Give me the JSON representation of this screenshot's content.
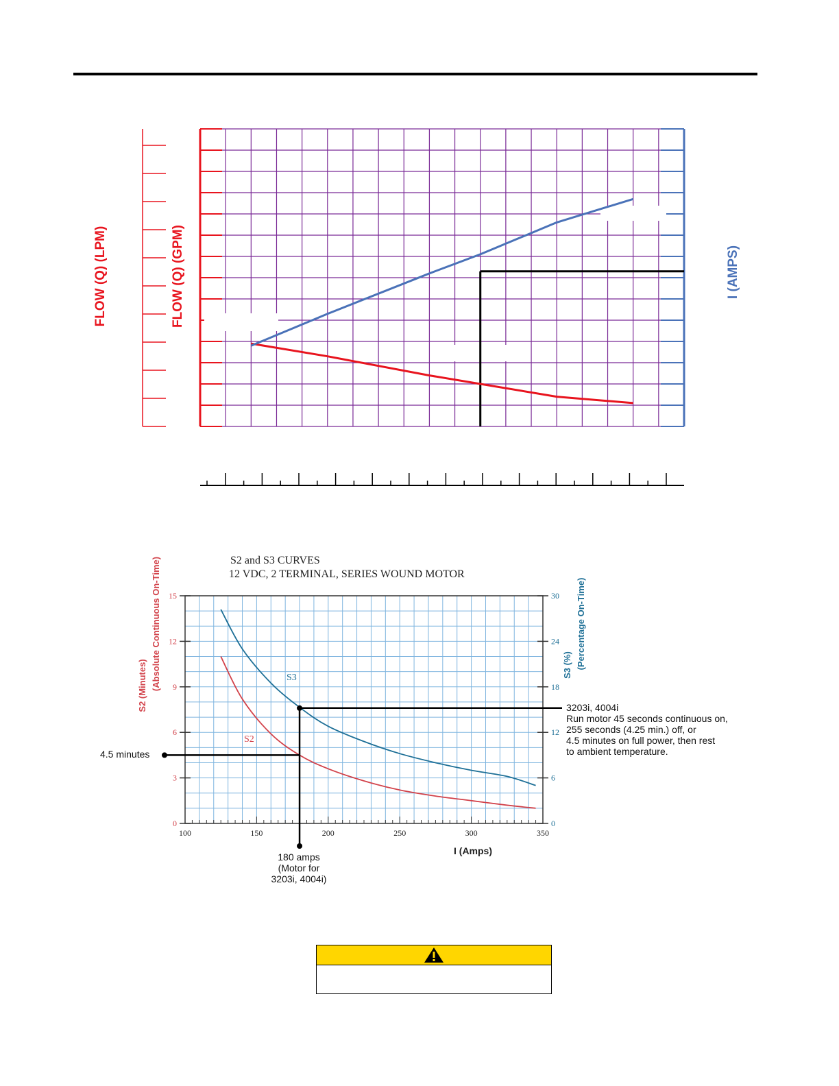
{
  "chart_data": [
    {
      "type": "line",
      "title": "",
      "ylabel_left_outer": "FLOW (Q) (LPM)",
      "ylabel_left_inner": "FLOW (Q) (GPM)",
      "ylabel_right": "I (AMPS)",
      "xlabel": "",
      "grid": true,
      "colors": {
        "flow": "#e8141e",
        "current": "#4a72b8",
        "grid": "#7a2a96",
        "left_axis": "#e8141e",
        "right_axis": "#4a72b8"
      },
      "series": [
        {
          "x": [
            2,
            5,
            9,
            11,
            14,
            17
          ],
          "values": [
            3.9,
            3.3,
            2.4,
            2.0,
            1.4,
            1.1
          ]
        },
        {
          "x": [
            2,
            5,
            9,
            11,
            14,
            17
          ],
          "values": [
            3.8,
            5.3,
            7.2,
            8.1,
            9.6,
            10.7
          ]
        }
      ],
      "reference": {
        "x": 11,
        "y": 7.3
      }
    },
    {
      "type": "line",
      "title": "S2 and S3 CURVES",
      "subtitle": "12 VDC, 2 TERMINAL, SERIES WOUND MOTOR",
      "xlabel": "I (Amps)",
      "ylabel_left": "S2 (Minutes)",
      "ylabel_left_sub": "(Absolute Continuous On-Time)",
      "ylabel_right": "S3 (%)",
      "ylabel_right_sub": "(Percentage On-Time)",
      "xlim": [
        100,
        350
      ],
      "ylim_left": [
        0,
        15
      ],
      "ylim_right": [
        0,
        30
      ],
      "x_ticks": [
        "100",
        "150",
        "200",
        "250",
        "300",
        "350"
      ],
      "y_ticks_left": [
        "0",
        "3",
        "6",
        "9",
        "12",
        "15"
      ],
      "y_ticks_right": [
        "0",
        "6",
        "12",
        "18",
        "24",
        "30"
      ],
      "grid": true,
      "colors": {
        "s2": "#d2424a",
        "s3": "#1d6f96",
        "grid": "#7fb5df",
        "left_ticks": "#d2424a",
        "right_ticks": "#1d6f96"
      },
      "series": [
        {
          "name": "S2",
          "axis": "left",
          "x": [
            125,
            140,
            160,
            180,
            200,
            225,
            250,
            275,
            300,
            325,
            345
          ],
          "values": [
            11,
            8.2,
            5.9,
            4.5,
            3.6,
            2.8,
            2.2,
            1.8,
            1.5,
            1.2,
            1.0
          ]
        },
        {
          "name": "S3",
          "axis": "right",
          "x": [
            125,
            140,
            160,
            180,
            200,
            225,
            250,
            275,
            300,
            325,
            345
          ],
          "values": [
            28.2,
            23.0,
            18.5,
            15.3,
            12.8,
            10.8,
            9.2,
            8.0,
            7.0,
            6.2,
            5.0
          ]
        }
      ],
      "callouts": {
        "minutes": {
          "label": "4.5 minutes",
          "x": 180,
          "y": 4.5
        },
        "amps": {
          "lines": [
            "180 amps",
            "(Motor for",
            "3203i, 4004i)"
          ],
          "x": 180
        },
        "s3_point": {
          "x": 180,
          "y": 15.2,
          "lines": [
            "3203i, 4004i",
            "Run motor 45 seconds continuous on,",
            "255 seconds (4.25 min.) off, or",
            "4.5 minutes on full power, then rest",
            "to ambient temperature."
          ]
        }
      }
    }
  ],
  "warning": {
    "icon": "warning-triangle-icon",
    "header_color": "#ffd600",
    "text": ""
  }
}
